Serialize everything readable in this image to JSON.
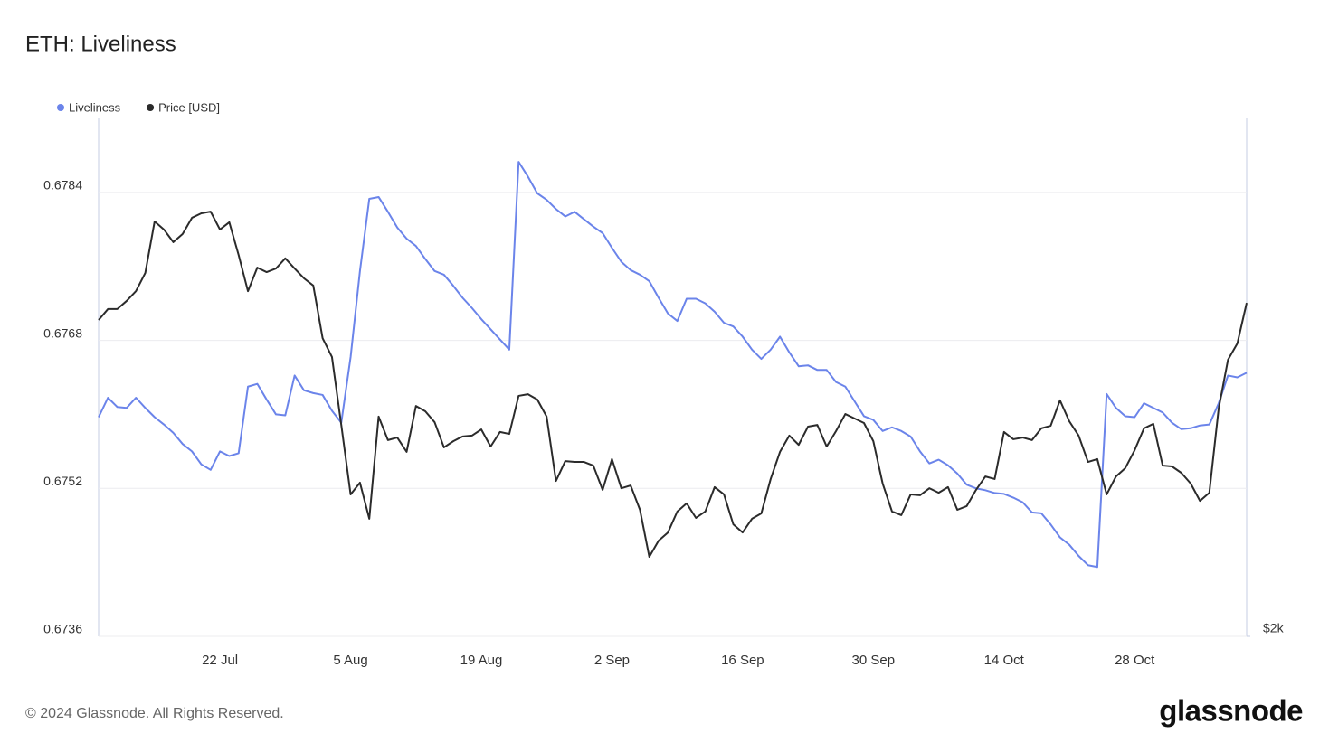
{
  "chart_data": {
    "type": "line",
    "title": "ETH: Liveliness",
    "categories": [
      null,
      null,
      null,
      null,
      null,
      null,
      null,
      null,
      null,
      null,
      null,
      null,
      null,
      "22 Jul",
      null,
      null,
      null,
      null,
      null,
      null,
      null,
      null,
      null,
      null,
      null,
      null,
      null,
      "5 Aug",
      null,
      null,
      null,
      null,
      null,
      null,
      null,
      null,
      null,
      null,
      null,
      null,
      null,
      "19 Aug",
      null,
      null,
      null,
      null,
      null,
      null,
      null,
      null,
      null,
      null,
      null,
      null,
      null,
      "2 Sep",
      null,
      null,
      null,
      null,
      null,
      null,
      null,
      null,
      null,
      null,
      null,
      null,
      null,
      "16 Sep",
      null,
      null,
      null,
      null,
      null,
      null,
      null,
      null,
      null,
      null,
      null,
      null,
      null,
      "30 Sep",
      null,
      null,
      null,
      null,
      null,
      null,
      null,
      null,
      null,
      null,
      null,
      null,
      null,
      "14 Oct",
      null,
      null,
      null,
      null,
      null,
      null,
      null,
      null,
      null,
      null,
      null,
      null,
      null,
      "28 Oct",
      null,
      null,
      null,
      null,
      null,
      null,
      null,
      null,
      null,
      null,
      null,
      null
    ],
    "series": [
      {
        "name": "Liveliness",
        "color": "#6b84ea",
        "values": [
          0.67597,
          0.67618,
          0.67608,
          0.67607,
          0.67618,
          0.67607,
          0.67597,
          0.67589,
          0.6758,
          0.67568,
          0.6756,
          0.67546,
          0.6754,
          0.6756,
          0.67555,
          0.67558,
          0.6763,
          0.67633,
          0.67616,
          0.676,
          0.67599,
          0.67642,
          0.67626,
          0.67623,
          0.67621,
          0.67604,
          0.67591,
          0.67662,
          0.67755,
          0.67833,
          0.67835,
          0.67819,
          0.67802,
          0.6779,
          0.67782,
          0.67768,
          0.67755,
          0.67751,
          0.67739,
          0.67726,
          0.67715,
          0.67703,
          0.67692,
          0.67681,
          0.6767,
          0.67873,
          0.67857,
          0.67839,
          0.67832,
          0.67822,
          0.67814,
          0.67819,
          0.67811,
          0.67803,
          0.67796,
          0.6778,
          0.67765,
          0.67756,
          0.67751,
          0.67744,
          0.67726,
          0.67709,
          0.67701,
          0.67725,
          0.67725,
          0.6772,
          0.67711,
          0.67699,
          0.67695,
          0.67684,
          0.6767,
          0.6766,
          0.6767,
          0.67684,
          0.67667,
          0.67652,
          0.67653,
          0.67648,
          0.67648,
          0.67635,
          0.6763,
          0.67614,
          0.67598,
          0.67594,
          0.67582,
          0.67586,
          0.67582,
          0.67576,
          0.6756,
          0.67547,
          0.67551,
          0.67545,
          0.67536,
          0.67524,
          0.6752,
          0.67518,
          0.67515,
          0.67514,
          0.6751,
          0.67505,
          0.67494,
          0.67493,
          0.67481,
          0.67467,
          0.67459,
          0.67447,
          0.67437,
          0.67435,
          0.67622,
          0.67607,
          0.67598,
          0.67597,
          0.67612,
          0.67607,
          0.67602,
          0.67591,
          0.67584,
          0.67585,
          0.67588,
          0.67589,
          0.67612,
          0.67642,
          0.6764,
          0.67645
        ]
      },
      {
        "name": "Price [USD]",
        "color": "#2b2b2b",
        "axis": "y2",
        "values": [
          3130,
          3169,
          3169,
          3198,
          3233,
          3298,
          3482,
          3453,
          3408,
          3437,
          3495,
          3511,
          3517,
          3453,
          3479,
          3362,
          3233,
          3317,
          3301,
          3314,
          3350,
          3314,
          3279,
          3253,
          3065,
          2998,
          2755,
          2507,
          2549,
          2420,
          2785,
          2701,
          2710,
          2659,
          2823,
          2804,
          2765,
          2675,
          2697,
          2714,
          2717,
          2739,
          2678,
          2730,
          2723,
          2859,
          2865,
          2846,
          2785,
          2555,
          2626,
          2623,
          2623,
          2610,
          2523,
          2633,
          2529,
          2539,
          2452,
          2284,
          2342,
          2371,
          2446,
          2475,
          2423,
          2446,
          2533,
          2507,
          2400,
          2371,
          2420,
          2439,
          2562,
          2659,
          2717,
          2684,
          2749,
          2755,
          2678,
          2733,
          2794,
          2778,
          2762,
          2697,
          2546,
          2446,
          2433,
          2507,
          2504,
          2529,
          2513,
          2533,
          2452,
          2465,
          2523,
          2571,
          2562,
          2730,
          2704,
          2710,
          2701,
          2743,
          2752,
          2843,
          2768,
          2717,
          2623,
          2633,
          2507,
          2571,
          2601,
          2665,
          2743,
          2759,
          2610,
          2607,
          2584,
          2546,
          2484,
          2513,
          2814,
          2988,
          3046,
          3191
        ]
      }
    ],
    "ylim": [
      0.6736,
      0.6792
    ],
    "yticks": [
      0.6736,
      0.6752,
      0.6768,
      0.6784
    ],
    "y2lim": [
      2000,
      3850
    ],
    "y2ticks": [
      {
        "value": 2000,
        "label": "$2k"
      }
    ],
    "grid": true,
    "legend": "top-left"
  },
  "footer": {
    "copyright": "© 2024 Glassnode. All Rights Reserved.",
    "logo": "glassnode"
  }
}
